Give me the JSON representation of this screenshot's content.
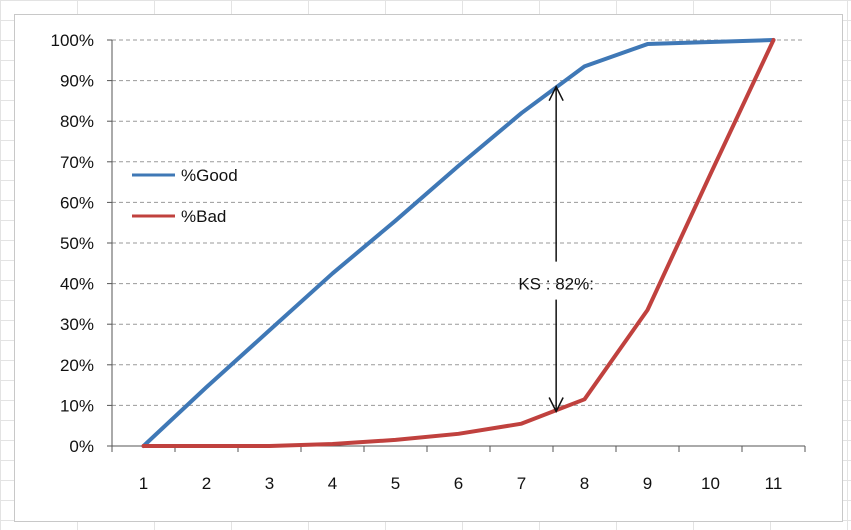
{
  "chart_data": {
    "type": "line",
    "x": [
      1,
      2,
      3,
      4,
      5,
      6,
      7,
      8,
      9,
      10,
      11
    ],
    "xlim": [
      0.5,
      11.5
    ],
    "ylim": [
      0,
      100
    ],
    "y_ticks": [
      "0%",
      "10%",
      "20%",
      "30%",
      "40%",
      "50%",
      "60%",
      "70%",
      "80%",
      "90%",
      "100%"
    ],
    "grid": true,
    "legend_position": "left",
    "series": [
      {
        "name": "%Good",
        "color": "#3f78b6",
        "values": [
          0,
          14.5,
          28.5,
          42.5,
          55.5,
          69,
          82,
          93.5,
          99,
          99.5,
          100
        ]
      },
      {
        "name": "%Bad",
        "color": "#c0413e",
        "values": [
          0,
          0,
          0,
          0.5,
          1.5,
          3,
          5.5,
          11.5,
          33.5,
          67,
          100
        ]
      }
    ],
    "annotation": {
      "text": "KS : 82%:",
      "x": 7.55,
      "y_top": 88.5,
      "y_bottom": 8.5
    }
  }
}
